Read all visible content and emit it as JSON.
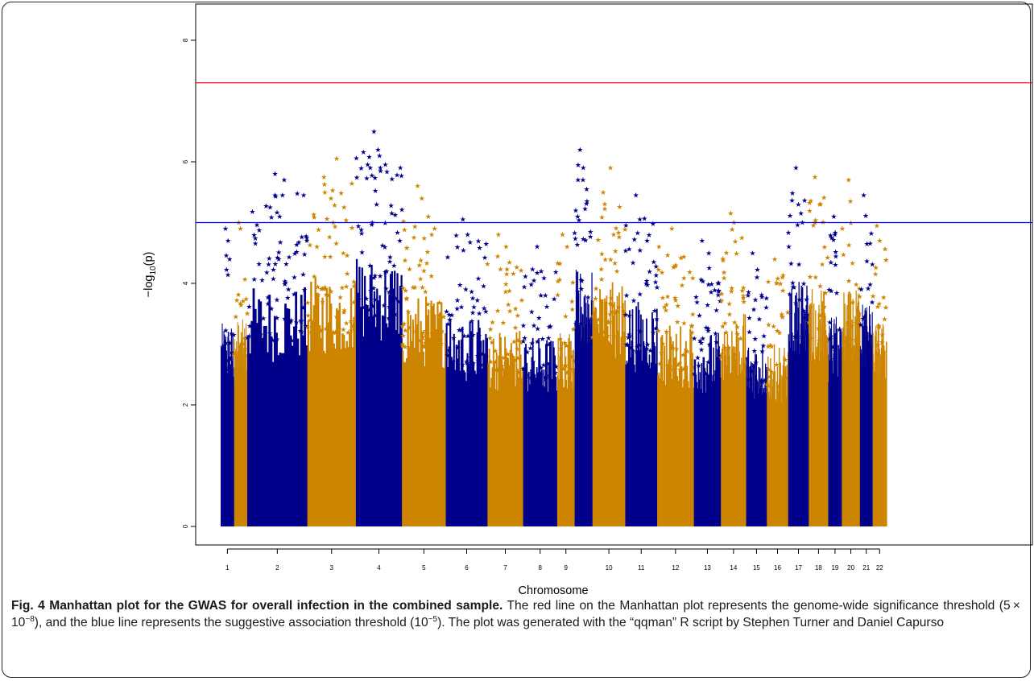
{
  "chart_data": {
    "type": "scatter",
    "subtype": "manhattan",
    "xlabel": "Chromosome",
    "ylabel_prefix": "−log",
    "ylabel_sub": "10",
    "ylabel_suffix": "(p)",
    "ylim": [
      0,
      8
    ],
    "y_ticks": [
      0,
      2,
      4,
      6,
      8
    ],
    "marker": "★",
    "colors": [
      "#00008B",
      "#CD8500"
    ],
    "grid": false,
    "thresholds": [
      {
        "value": 7.30103,
        "color": "#ff0000"
      },
      {
        "value": 5,
        "color": "#0000ff"
      }
    ],
    "chromosomes": [
      {
        "label": "1",
        "start": 0,
        "len": 249,
        "max": 4.9,
        "peaks": [
          4.9,
          4.7,
          4.4
        ]
      },
      {
        "label": "",
        "start": 249,
        "len": 243,
        "max": 5.0,
        "peaks": [
          5.0,
          4.9
        ]
      },
      {
        "label": "2",
        "start": 492,
        "len": 1111,
        "max": 5.8,
        "peaks": [
          5.25,
          5.8,
          5.7,
          5.45,
          5.1
        ]
      },
      {
        "label": "3",
        "start": 1603,
        "len": 898,
        "max": 6.05,
        "peaks": [
          5.75,
          5.4,
          6.05,
          5.5,
          5.0
        ]
      },
      {
        "label": "4",
        "start": 2501,
        "len": 852,
        "max": 6.5,
        "peaks": [
          6.5,
          6.1,
          5.9,
          5.3,
          5.85
        ]
      },
      {
        "label": "5",
        "start": 3353,
        "len": 811,
        "max": 5.6,
        "peaks": [
          5.6,
          5.4,
          4.8
        ]
      },
      {
        "label": "6",
        "start": 4164,
        "len": 771,
        "max": 5.05,
        "peaks": [
          5.05,
          4.8
        ]
      },
      {
        "label": "7",
        "start": 4935,
        "len": 659,
        "max": 4.8,
        "peaks": [
          4.8,
          4.6
        ]
      },
      {
        "label": "8",
        "start": 5594,
        "len": 630,
        "max": 4.6,
        "peaks": [
          4.6,
          4.2
        ]
      },
      {
        "label": "9",
        "start": 6224,
        "len": 323,
        "max": 4.8,
        "peaks": [
          4.8,
          4.6
        ]
      },
      {
        "label": "",
        "start": 6547,
        "len": 330,
        "max": 6.2,
        "peaks": [
          6.2,
          5.7,
          5.55
        ]
      },
      {
        "label": "10",
        "start": 6877,
        "len": 606,
        "max": 5.9,
        "peaks": [
          5.5,
          5.9,
          4.8
        ]
      },
      {
        "label": "11",
        "start": 7483,
        "len": 590,
        "max": 5.45,
        "peaks": [
          5.45,
          5.05,
          4.7
        ]
      },
      {
        "label": "12",
        "start": 8073,
        "len": 679,
        "max": 4.9,
        "peaks": [
          4.9,
          4.3
        ]
      },
      {
        "label": "13",
        "start": 8752,
        "len": 500,
        "max": 4.7,
        "peaks": [
          4.7,
          4.5
        ]
      },
      {
        "label": "14",
        "start": 9252,
        "len": 467,
        "max": 5.15,
        "peaks": [
          5.15,
          5.0
        ]
      },
      {
        "label": "15",
        "start": 9719,
        "len": 383,
        "max": 4.5,
        "peaks": [
          4.5,
          4.1
        ]
      },
      {
        "label": "16",
        "start": 10102,
        "len": 394,
        "max": 4.4,
        "peaks": [
          4.4,
          4.0
        ]
      },
      {
        "label": "17",
        "start": 10496,
        "len": 381,
        "max": 5.9,
        "peaks": [
          5.9,
          5.3,
          5.0
        ]
      },
      {
        "label": "18",
        "start": 10877,
        "len": 360,
        "max": 5.75,
        "peaks": [
          5.75,
          5.3,
          5.0
        ]
      },
      {
        "label": "19",
        "start": 11237,
        "len": 251,
        "max": 5.1,
        "peaks": [
          5.1,
          4.8
        ]
      },
      {
        "label": "20",
        "start": 11488,
        "len": 335,
        "max": 5.7,
        "peaks": [
          5.7,
          5.35
        ]
      },
      {
        "label": "21",
        "start": 11823,
        "len": 235,
        "max": 5.45,
        "peaks": [
          5.45,
          4.65
        ]
      },
      {
        "label": "22",
        "start": 12058,
        "len": 259,
        "max": 4.95,
        "peaks": [
          4.95,
          4.7
        ]
      }
    ],
    "total_len": 12317
  },
  "caption": {
    "title": "Fig. 4 Manhattan plot for the GWAS for overall infection in the combined sample.",
    "part1": " The red line on the Manhattan plot represents the genome-wide significance threshold (5 × 10",
    "sup1": "−8",
    "part2": "), and the blue line represents the suggestive association threshold (10",
    "sup2": "−5",
    "part3": "). The plot was generated with the “qqman” R script by Stephen Turner and Daniel Capurso"
  }
}
